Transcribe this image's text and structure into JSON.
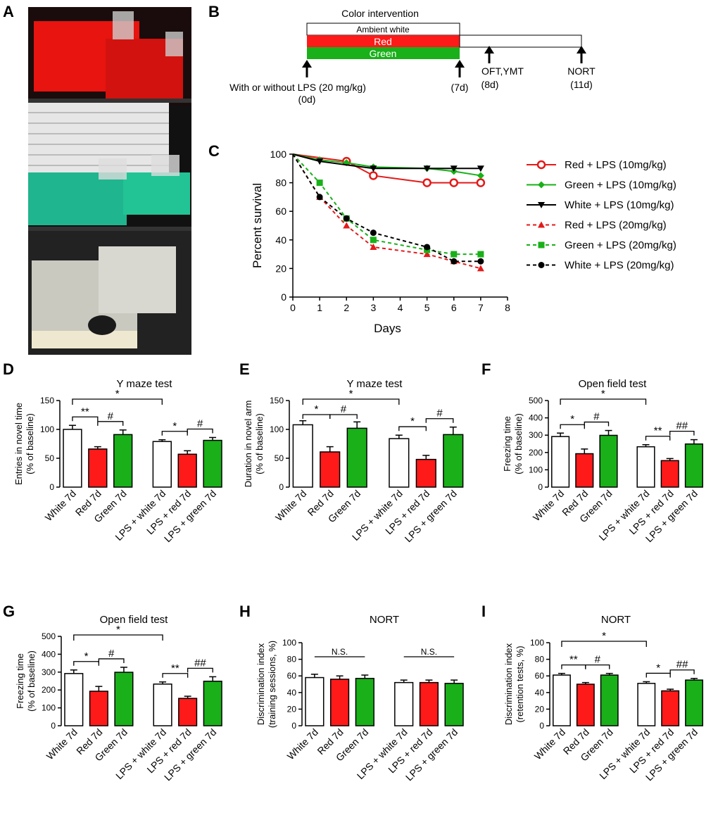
{
  "panel_letters": [
    "A",
    "B",
    "C",
    "D",
    "E",
    "F",
    "G",
    "H",
    "I"
  ],
  "colors": {
    "red": "#ff1a1a",
    "green": "#19b019",
    "white": "#ffffff",
    "black": "#000000"
  },
  "photo": {
    "description_icon": "photo-icon",
    "shelves": [
      "red-cages",
      "green-cages",
      "clear-cages"
    ]
  },
  "timeline": {
    "title": "Color intervention",
    "bars": [
      "Ambient white",
      "Red",
      "Green"
    ],
    "events": [
      {
        "label": "With or without LPS (20 mg/kg)",
        "day": "(0d)"
      },
      {
        "label": "",
        "day": "(7d)"
      },
      {
        "label": "OFT,YMT",
        "day": "(8d)"
      },
      {
        "label": "NORT",
        "day": "(11d)"
      }
    ]
  },
  "chart_data": [
    {
      "panel": "C",
      "type": "line",
      "xlabel": "Days",
      "ylabel": "Percent survival",
      "xlim": [
        0,
        8
      ],
      "ylim": [
        0,
        100
      ],
      "xticks": [
        0,
        1,
        2,
        3,
        4,
        5,
        6,
        7,
        8
      ],
      "yticks": [
        0,
        20,
        40,
        60,
        80,
        100
      ],
      "series": [
        {
          "name": "Red + LPS (10mg/kg)",
          "color": "#e31a1a",
          "dash": false,
          "marker": "circle-open",
          "x": [
            0,
            2,
            3,
            5,
            6,
            7
          ],
          "y": [
            100,
            95,
            85,
            80,
            80,
            80
          ]
        },
        {
          "name": "Green + LPS (10mg/kg)",
          "color": "#19b019",
          "dash": false,
          "marker": "diamond",
          "x": [
            0,
            1,
            2,
            3,
            5,
            6,
            7
          ],
          "y": [
            100,
            96,
            94,
            91,
            90,
            88,
            85
          ]
        },
        {
          "name": "White + LPS (10mg/kg)",
          "color": "#000000",
          "dash": false,
          "marker": "triangle-down",
          "x": [
            0,
            1,
            3,
            5,
            6,
            7
          ],
          "y": [
            100,
            95,
            90,
            90,
            90,
            90
          ]
        },
        {
          "name": "Red + LPS (20mg/kg)",
          "color": "#e31a1a",
          "dash": true,
          "marker": "triangle-up",
          "x": [
            0,
            1,
            2,
            3,
            5,
            6,
            7
          ],
          "y": [
            100,
            70,
            50,
            35,
            30,
            25,
            20
          ]
        },
        {
          "name": "Green + LPS (20mg/kg)",
          "color": "#19b019",
          "dash": true,
          "marker": "square",
          "x": [
            0,
            1,
            2,
            3,
            5,
            6,
            7
          ],
          "y": [
            100,
            80,
            55,
            40,
            33,
            30,
            30
          ]
        },
        {
          "name": "White + LPS (20mg/kg)",
          "color": "#000000",
          "dash": true,
          "marker": "circle",
          "x": [
            0,
            1,
            2,
            3,
            5,
            6,
            7
          ],
          "y": [
            100,
            70,
            55,
            45,
            35,
            25,
            25
          ]
        }
      ]
    },
    {
      "panel": "D",
      "type": "bar",
      "title": "Y maze test",
      "ylabel": [
        "Entries in novel time",
        "(% of baseline)"
      ],
      "ylim": [
        0,
        150
      ],
      "yticks": [
        0,
        50,
        100,
        150
      ],
      "categories": [
        "White 7d",
        "Red 7d",
        "Green 7d",
        "LPS + white 7d",
        "LPS + red 7d",
        "LPS + green 7d"
      ],
      "values": [
        100,
        66,
        91,
        79,
        57,
        81
      ],
      "errors": [
        7,
        4,
        8,
        3,
        6,
        5
      ],
      "sig": [
        {
          "a": 0,
          "b": 1,
          "label": "**",
          "level": 1
        },
        {
          "a": 1,
          "b": 2,
          "label": "#",
          "level": 1
        },
        {
          "a": 3,
          "b": 4,
          "label": "*",
          "level": 1
        },
        {
          "a": 4,
          "b": 5,
          "label": "#",
          "level": 1
        },
        {
          "a": 0,
          "b": 3,
          "label": "*",
          "level": 2
        }
      ]
    },
    {
      "panel": "E",
      "type": "bar",
      "title": "Y maze test",
      "ylabel": [
        "Duration in novel arm",
        "(% of baseline)"
      ],
      "ylim": [
        0,
        150
      ],
      "yticks": [
        0,
        50,
        100,
        150
      ],
      "categories": [
        "White 7d",
        "Red 7d",
        "Green 7d",
        "LPS + white 7d",
        "LPS + red 7d",
        "LPS + green 7d"
      ],
      "values": [
        108,
        61,
        102,
        84,
        48,
        91
      ],
      "errors": [
        7,
        9,
        11,
        6,
        7,
        13
      ],
      "sig": [
        {
          "a": 0,
          "b": 1,
          "label": "*",
          "level": 1
        },
        {
          "a": 1,
          "b": 2,
          "label": "#",
          "level": 1
        },
        {
          "a": 3,
          "b": 4,
          "label": "*",
          "level": 1
        },
        {
          "a": 4,
          "b": 5,
          "label": "#",
          "level": 1
        },
        {
          "a": 0,
          "b": 3,
          "label": "*",
          "level": 2
        }
      ]
    },
    {
      "panel": "F",
      "type": "bar",
      "title": "Open field test",
      "ylabel": [
        "Freezing time",
        "(% of baseline)"
      ],
      "ylim": [
        0,
        500
      ],
      "yticks": [
        0,
        100,
        200,
        300,
        400,
        500
      ],
      "categories": [
        "White 7d",
        "Red 7d",
        "Green 7d",
        "LPS + white 7d",
        "LPS + red 7d",
        "LPS + green 7d"
      ],
      "values": [
        292,
        193,
        299,
        233,
        153,
        249
      ],
      "errors": [
        20,
        27,
        28,
        12,
        12,
        25
      ],
      "sig": [
        {
          "a": 0,
          "b": 1,
          "label": "*",
          "level": 1
        },
        {
          "a": 1,
          "b": 2,
          "label": "#",
          "level": 1
        },
        {
          "a": 3,
          "b": 4,
          "label": "**",
          "level": 1
        },
        {
          "a": 4,
          "b": 5,
          "label": "##",
          "level": 1
        },
        {
          "a": 0,
          "b": 3,
          "label": "*",
          "level": 2
        }
      ]
    },
    {
      "panel": "G",
      "type": "bar",
      "title": "Open field test",
      "ylabel": [
        "Freezing time",
        "(% of baseline)"
      ],
      "ylim": [
        0,
        500
      ],
      "yticks": [
        0,
        100,
        200,
        300,
        400,
        500
      ],
      "categories": [
        "White 7d",
        "Red 7d",
        "Green 7d",
        "LPS + white 7d",
        "LPS + red 7d",
        "LPS + green 7d"
      ],
      "values": [
        292,
        193,
        299,
        233,
        153,
        249
      ],
      "errors": [
        20,
        27,
        28,
        12,
        12,
        25
      ],
      "sig": [
        {
          "a": 0,
          "b": 1,
          "label": "*",
          "level": 1
        },
        {
          "a": 1,
          "b": 2,
          "label": "#",
          "level": 1
        },
        {
          "a": 3,
          "b": 4,
          "label": "**",
          "level": 1
        },
        {
          "a": 4,
          "b": 5,
          "label": "##",
          "level": 1
        },
        {
          "a": 0,
          "b": 3,
          "label": "*",
          "level": 2
        }
      ]
    },
    {
      "panel": "H",
      "type": "bar",
      "title": "NORT",
      "ylabel": [
        "Discrimination index",
        "(training sessions, %)"
      ],
      "ylim": [
        0,
        100
      ],
      "yticks": [
        0,
        20,
        40,
        60,
        80,
        100
      ],
      "categories": [
        "White 7d",
        "Red 7d",
        "Green 7d",
        "LPS + white 7d",
        "LPS + red 7d",
        "LPS + green 7d"
      ],
      "values": [
        58,
        56,
        57,
        52,
        52,
        51
      ],
      "errors": [
        4,
        4,
        4,
        3,
        3,
        4
      ],
      "sig": [
        {
          "a": 0,
          "b": 2,
          "label": "N.S.",
          "level": 1,
          "flat": true
        },
        {
          "a": 3,
          "b": 5,
          "label": "N.S.",
          "level": 1,
          "flat": true
        }
      ]
    },
    {
      "panel": "I",
      "type": "bar",
      "title": "NORT",
      "ylabel": [
        "Discrimination index",
        "(retention tests, %)"
      ],
      "ylim": [
        0,
        100
      ],
      "yticks": [
        0,
        20,
        40,
        60,
        80,
        100
      ],
      "categories": [
        "White 7d",
        "Red 7d",
        "Green 7d",
        "LPS + white 7d",
        "LPS + red 7d",
        "LPS + green 7d"
      ],
      "values": [
        61,
        50,
        61,
        51,
        42,
        55
      ],
      "errors": [
        2,
        2,
        2,
        2,
        2,
        2
      ],
      "sig": [
        {
          "a": 0,
          "b": 1,
          "label": "**",
          "level": 1
        },
        {
          "a": 1,
          "b": 2,
          "label": "#",
          "level": 1
        },
        {
          "a": 3,
          "b": 4,
          "label": "*",
          "level": 1
        },
        {
          "a": 4,
          "b": 5,
          "label": "##",
          "level": 1
        },
        {
          "a": 0,
          "b": 3,
          "label": "*",
          "level": 2
        }
      ]
    }
  ]
}
